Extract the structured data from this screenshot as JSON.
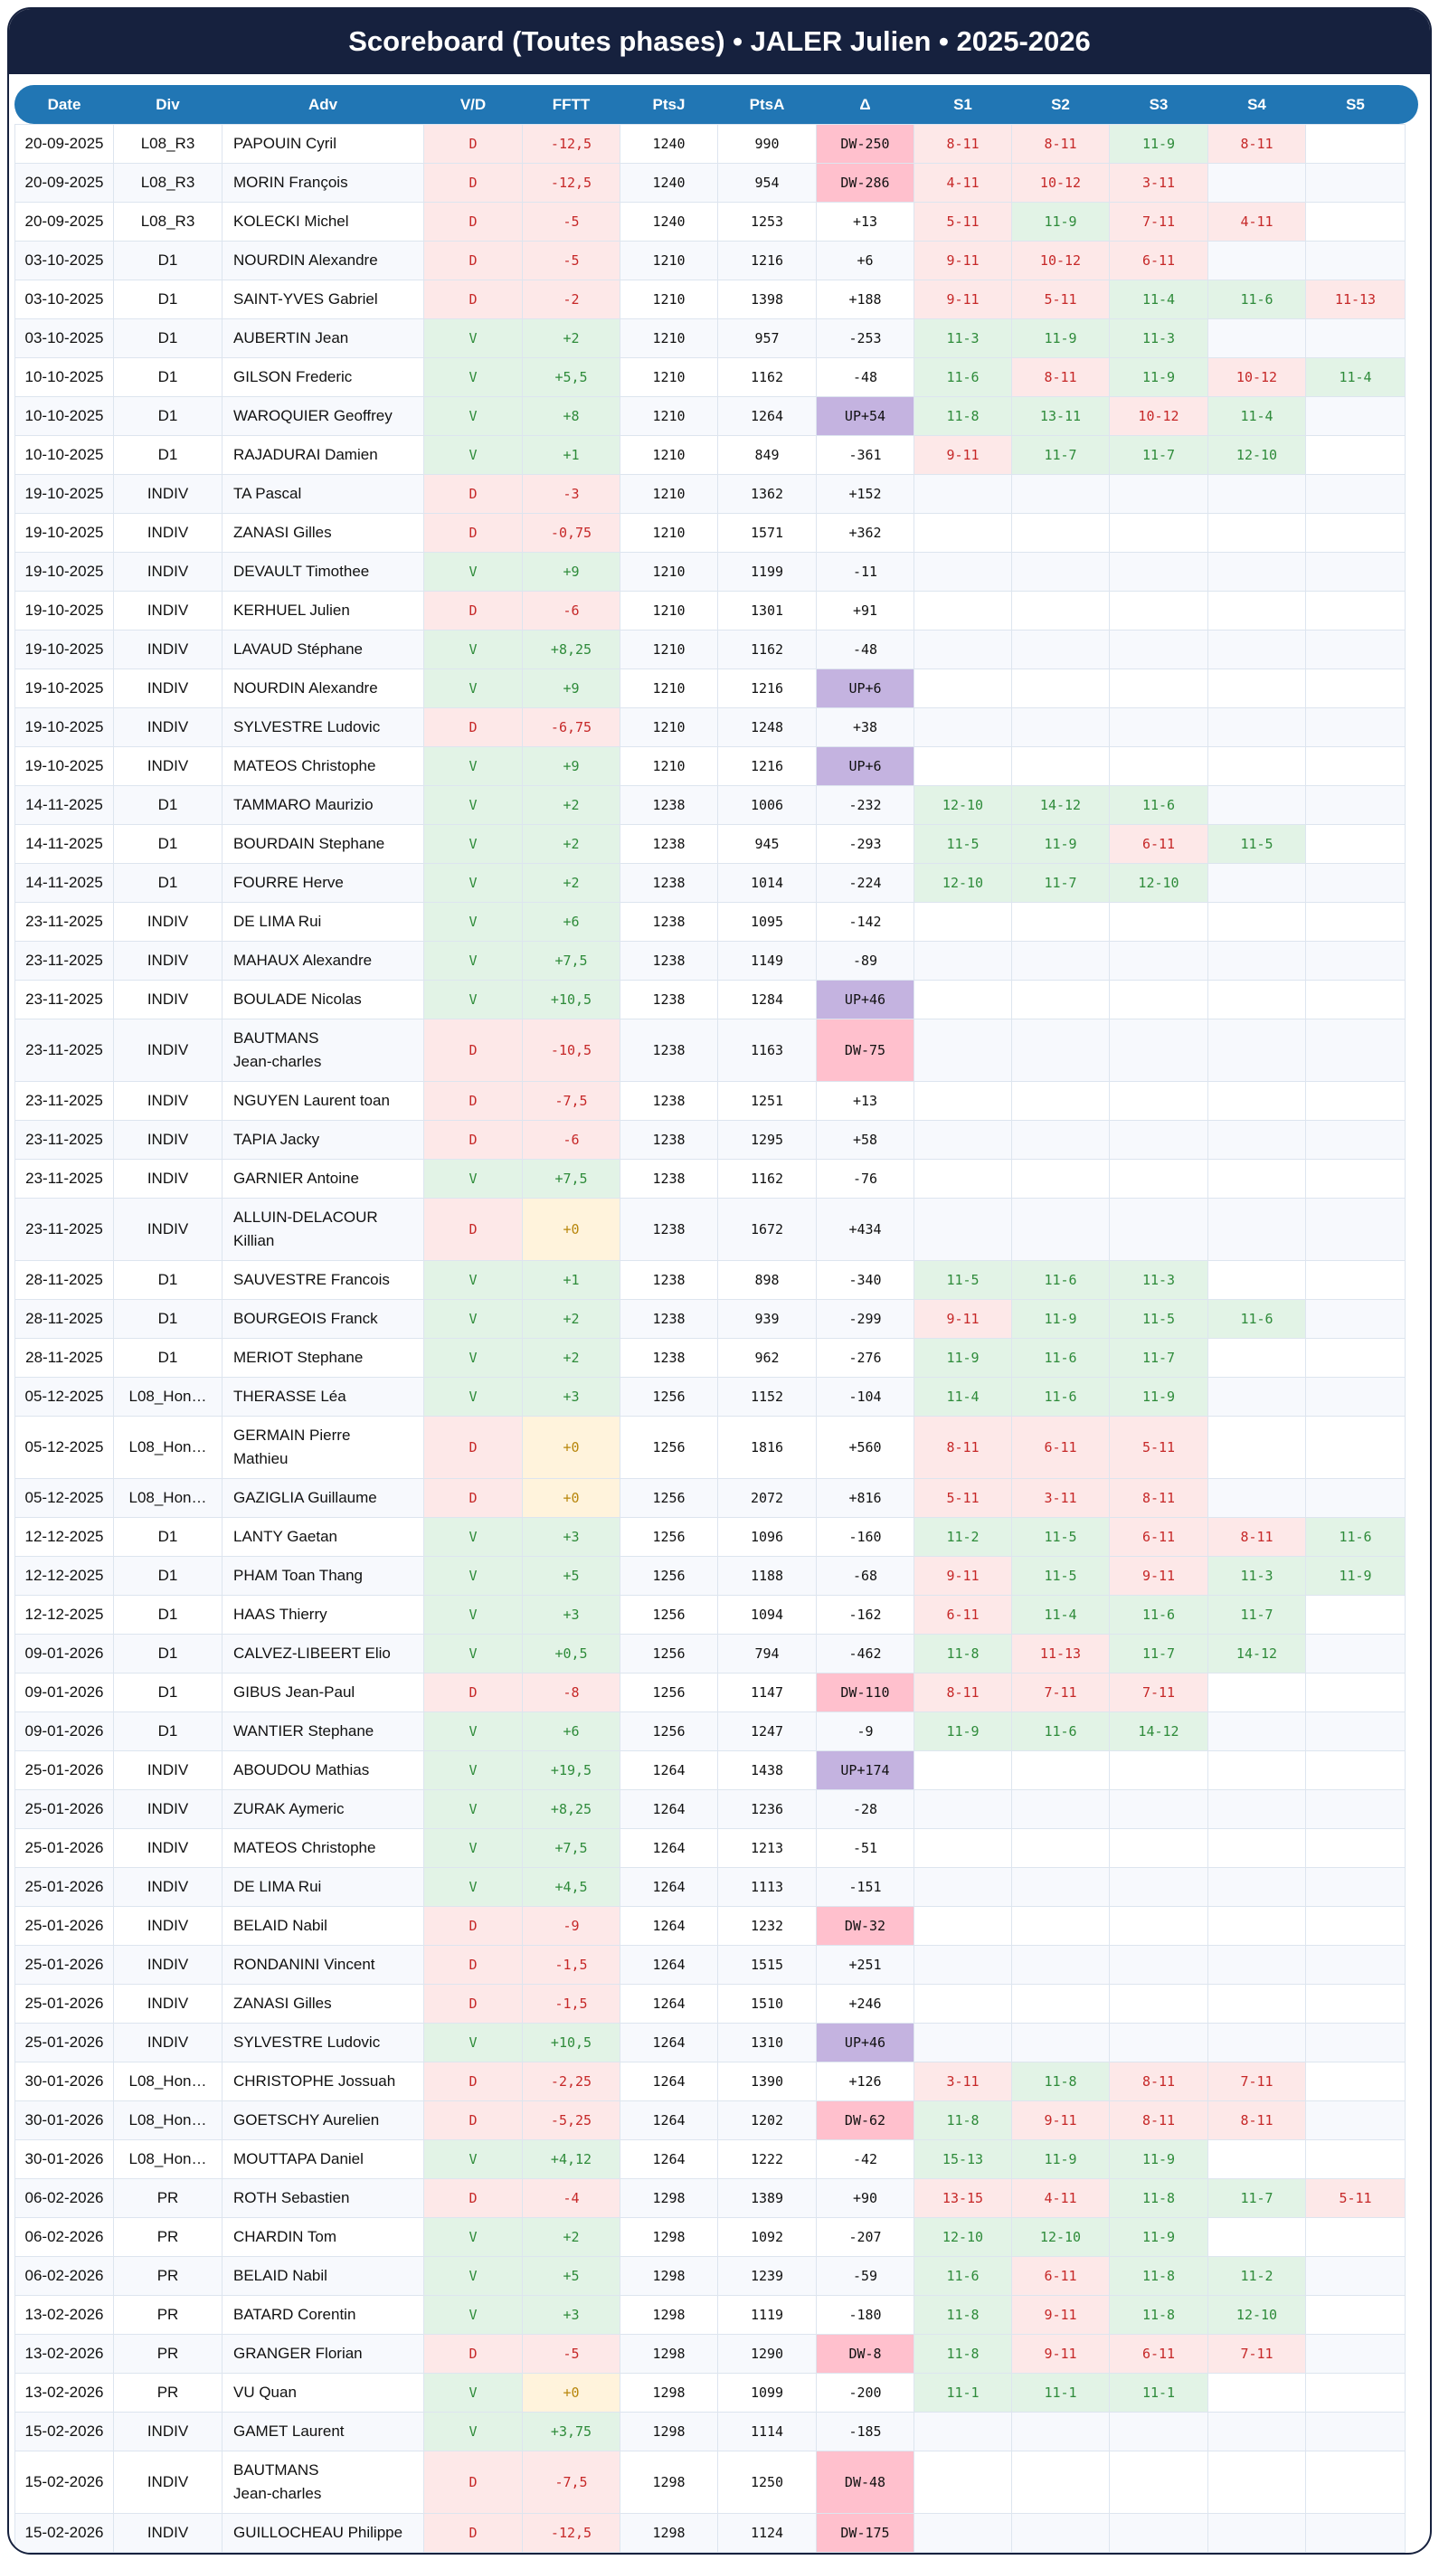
{
  "title": "Scoreboard (Toutes phases) • JALER Julien • 2025-2026",
  "columns": [
    "Date",
    "Div",
    "Adv",
    "V/D",
    "FFTT",
    "PtsJ",
    "PtsA",
    "Δ",
    "S1",
    "S2",
    "S3",
    "S4",
    "S5"
  ],
  "colors": {
    "header": "#16213e",
    "table_header": "#2176b4",
    "win_bg": "#e2f3e6",
    "loss_bg": "#fde8e8",
    "zero_bg": "#fff3dc",
    "dw_bg": "#ffc0cd",
    "up_bg": "#c4b3e0"
  },
  "rows": [
    [
      "20-09-2025",
      "L08_R3",
      "PAPOUIN Cyril",
      "D",
      "-12,5",
      "1240",
      "990",
      "DW-250",
      [
        "8-11",
        "8-11",
        "11-9",
        "8-11",
        ""
      ]
    ],
    [
      "20-09-2025",
      "L08_R3",
      "MORIN François",
      "D",
      "-12,5",
      "1240",
      "954",
      "DW-286",
      [
        "4-11",
        "10-12",
        "3-11",
        "",
        ""
      ]
    ],
    [
      "20-09-2025",
      "L08_R3",
      "KOLECKI Michel",
      "D",
      "-5",
      "1240",
      "1253",
      "+13",
      [
        "5-11",
        "11-9",
        "7-11",
        "4-11",
        ""
      ]
    ],
    [
      "03-10-2025",
      "D1",
      "NOURDIN Alexandre",
      "D",
      "-5",
      "1210",
      "1216",
      "+6",
      [
        "9-11",
        "10-12",
        "6-11",
        "",
        ""
      ]
    ],
    [
      "03-10-2025",
      "D1",
      "SAINT-YVES Gabriel",
      "D",
      "-2",
      "1210",
      "1398",
      "+188",
      [
        "9-11",
        "5-11",
        "11-4",
        "11-6",
        "11-13"
      ]
    ],
    [
      "03-10-2025",
      "D1",
      "AUBERTIN Jean",
      "V",
      "+2",
      "1210",
      "957",
      "-253",
      [
        "11-3",
        "11-9",
        "11-3",
        "",
        ""
      ]
    ],
    [
      "10-10-2025",
      "D1",
      "GILSON Frederic",
      "V",
      "+5,5",
      "1210",
      "1162",
      "-48",
      [
        "11-6",
        "8-11",
        "11-9",
        "10-12",
        "11-4"
      ]
    ],
    [
      "10-10-2025",
      "D1",
      "WAROQUIER Geoffrey",
      "V",
      "+8",
      "1210",
      "1264",
      "UP+54",
      [
        "11-8",
        "13-11",
        "10-12",
        "11-4",
        ""
      ]
    ],
    [
      "10-10-2025",
      "D1",
      "RAJADURAI Damien",
      "V",
      "+1",
      "1210",
      "849",
      "-361",
      [
        "9-11",
        "11-7",
        "11-7",
        "12-10",
        ""
      ]
    ],
    [
      "19-10-2025",
      "INDIV",
      "TA Pascal",
      "D",
      "-3",
      "1210",
      "1362",
      "+152",
      [
        "",
        "",
        "",
        "",
        ""
      ]
    ],
    [
      "19-10-2025",
      "INDIV",
      "ZANASI Gilles",
      "D",
      "-0,75",
      "1210",
      "1571",
      "+362",
      [
        "",
        "",
        "",
        "",
        ""
      ]
    ],
    [
      "19-10-2025",
      "INDIV",
      "DEVAULT Timothee",
      "V",
      "+9",
      "1210",
      "1199",
      "-11",
      [
        "",
        "",
        "",
        "",
        ""
      ]
    ],
    [
      "19-10-2025",
      "INDIV",
      "KERHUEL Julien",
      "D",
      "-6",
      "1210",
      "1301",
      "+91",
      [
        "",
        "",
        "",
        "",
        ""
      ]
    ],
    [
      "19-10-2025",
      "INDIV",
      "LAVAUD Stéphane",
      "V",
      "+8,25",
      "1210",
      "1162",
      "-48",
      [
        "",
        "",
        "",
        "",
        ""
      ]
    ],
    [
      "19-10-2025",
      "INDIV",
      "NOURDIN Alexandre",
      "V",
      "+9",
      "1210",
      "1216",
      "UP+6",
      [
        "",
        "",
        "",
        "",
        ""
      ]
    ],
    [
      "19-10-2025",
      "INDIV",
      "SYLVESTRE Ludovic",
      "D",
      "-6,75",
      "1210",
      "1248",
      "+38",
      [
        "",
        "",
        "",
        "",
        ""
      ]
    ],
    [
      "19-10-2025",
      "INDIV",
      "MATEOS Christophe",
      "V",
      "+9",
      "1210",
      "1216",
      "UP+6",
      [
        "",
        "",
        "",
        "",
        ""
      ]
    ],
    [
      "14-11-2025",
      "D1",
      "TAMMARO Maurizio",
      "V",
      "+2",
      "1238",
      "1006",
      "-232",
      [
        "12-10",
        "14-12",
        "11-6",
        "",
        ""
      ]
    ],
    [
      "14-11-2025",
      "D1",
      "BOURDAIN Stephane",
      "V",
      "+2",
      "1238",
      "945",
      "-293",
      [
        "11-5",
        "11-9",
        "6-11",
        "11-5",
        ""
      ]
    ],
    [
      "14-11-2025",
      "D1",
      "FOURRE Herve",
      "V",
      "+2",
      "1238",
      "1014",
      "-224",
      [
        "12-10",
        "11-7",
        "12-10",
        "",
        ""
      ]
    ],
    [
      "23-11-2025",
      "INDIV",
      "DE LIMA Rui",
      "V",
      "+6",
      "1238",
      "1095",
      "-142",
      [
        "",
        "",
        "",
        "",
        ""
      ]
    ],
    [
      "23-11-2025",
      "INDIV",
      "MAHAUX Alexandre",
      "V",
      "+7,5",
      "1238",
      "1149",
      "-89",
      [
        "",
        "",
        "",
        "",
        ""
      ]
    ],
    [
      "23-11-2025",
      "INDIV",
      "BOULADE Nicolas",
      "V",
      "+10,5",
      "1238",
      "1284",
      "UP+46",
      [
        "",
        "",
        "",
        "",
        ""
      ]
    ],
    [
      "23-11-2025",
      "INDIV",
      "BAUTMANS\nJean-charles",
      "D",
      "-10,5",
      "1238",
      "1163",
      "DW-75",
      [
        "",
        "",
        "",
        "",
        ""
      ]
    ],
    [
      "23-11-2025",
      "INDIV",
      "NGUYEN Laurent toan",
      "D",
      "-7,5",
      "1238",
      "1251",
      "+13",
      [
        "",
        "",
        "",
        "",
        ""
      ]
    ],
    [
      "23-11-2025",
      "INDIV",
      "TAPIA Jacky",
      "D",
      "-6",
      "1238",
      "1295",
      "+58",
      [
        "",
        "",
        "",
        "",
        ""
      ]
    ],
    [
      "23-11-2025",
      "INDIV",
      "GARNIER Antoine",
      "V",
      "+7,5",
      "1238",
      "1162",
      "-76",
      [
        "",
        "",
        "",
        "",
        ""
      ]
    ],
    [
      "23-11-2025",
      "INDIV",
      "ALLUIN-DELACOUR\nKillian",
      "D",
      "+0",
      "1238",
      "1672",
      "+434",
      [
        "",
        "",
        "",
        "",
        ""
      ]
    ],
    [
      "28-11-2025",
      "D1",
      "SAUVESTRE Francois",
      "V",
      "+1",
      "1238",
      "898",
      "-340",
      [
        "11-5",
        "11-6",
        "11-3",
        "",
        ""
      ]
    ],
    [
      "28-11-2025",
      "D1",
      "BOURGEOIS Franck",
      "V",
      "+2",
      "1238",
      "939",
      "-299",
      [
        "9-11",
        "11-9",
        "11-5",
        "11-6",
        ""
      ]
    ],
    [
      "28-11-2025",
      "D1",
      "MERIOT Stephane",
      "V",
      "+2",
      "1238",
      "962",
      "-276",
      [
        "11-9",
        "11-6",
        "11-7",
        "",
        ""
      ]
    ],
    [
      "05-12-2025",
      "L08_Hon…",
      "THERASSE Léa",
      "V",
      "+3",
      "1256",
      "1152",
      "-104",
      [
        "11-4",
        "11-6",
        "11-9",
        "",
        ""
      ]
    ],
    [
      "05-12-2025",
      "L08_Hon…",
      "GERMAIN Pierre\nMathieu",
      "D",
      "+0",
      "1256",
      "1816",
      "+560",
      [
        "8-11",
        "6-11",
        "5-11",
        "",
        ""
      ]
    ],
    [
      "05-12-2025",
      "L08_Hon…",
      "GAZIGLIA Guillaume",
      "D",
      "+0",
      "1256",
      "2072",
      "+816",
      [
        "5-11",
        "3-11",
        "8-11",
        "",
        ""
      ]
    ],
    [
      "12-12-2025",
      "D1",
      "LANTY Gaetan",
      "V",
      "+3",
      "1256",
      "1096",
      "-160",
      [
        "11-2",
        "11-5",
        "6-11",
        "8-11",
        "11-6"
      ]
    ],
    [
      "12-12-2025",
      "D1",
      "PHAM Toan Thang",
      "V",
      "+5",
      "1256",
      "1188",
      "-68",
      [
        "9-11",
        "11-5",
        "9-11",
        "11-3",
        "11-9"
      ]
    ],
    [
      "12-12-2025",
      "D1",
      "HAAS Thierry",
      "V",
      "+3",
      "1256",
      "1094",
      "-162",
      [
        "6-11",
        "11-4",
        "11-6",
        "11-7",
        ""
      ]
    ],
    [
      "09-01-2026",
      "D1",
      "CALVEZ-LIBEERT Elio",
      "V",
      "+0,5",
      "1256",
      "794",
      "-462",
      [
        "11-8",
        "11-13",
        "11-7",
        "14-12",
        ""
      ]
    ],
    [
      "09-01-2026",
      "D1",
      "GIBUS Jean-Paul",
      "D",
      "-8",
      "1256",
      "1147",
      "DW-110",
      [
        "8-11",
        "7-11",
        "7-11",
        "",
        ""
      ]
    ],
    [
      "09-01-2026",
      "D1",
      "WANTIER Stephane",
      "V",
      "+6",
      "1256",
      "1247",
      "-9",
      [
        "11-9",
        "11-6",
        "14-12",
        "",
        ""
      ]
    ],
    [
      "25-01-2026",
      "INDIV",
      "ABOUDOU Mathias",
      "V",
      "+19,5",
      "1264",
      "1438",
      "UP+174",
      [
        "",
        "",
        "",
        "",
        ""
      ]
    ],
    [
      "25-01-2026",
      "INDIV",
      "ZURAK Aymeric",
      "V",
      "+8,25",
      "1264",
      "1236",
      "-28",
      [
        "",
        "",
        "",
        "",
        ""
      ]
    ],
    [
      "25-01-2026",
      "INDIV",
      "MATEOS Christophe",
      "V",
      "+7,5",
      "1264",
      "1213",
      "-51",
      [
        "",
        "",
        "",
        "",
        ""
      ]
    ],
    [
      "25-01-2026",
      "INDIV",
      "DE LIMA Rui",
      "V",
      "+4,5",
      "1264",
      "1113",
      "-151",
      [
        "",
        "",
        "",
        "",
        ""
      ]
    ],
    [
      "25-01-2026",
      "INDIV",
      "BELAID Nabil",
      "D",
      "-9",
      "1264",
      "1232",
      "DW-32",
      [
        "",
        "",
        "",
        "",
        ""
      ]
    ],
    [
      "25-01-2026",
      "INDIV",
      "RONDANINI Vincent",
      "D",
      "-1,5",
      "1264",
      "1515",
      "+251",
      [
        "",
        "",
        "",
        "",
        ""
      ]
    ],
    [
      "25-01-2026",
      "INDIV",
      "ZANASI Gilles",
      "D",
      "-1,5",
      "1264",
      "1510",
      "+246",
      [
        "",
        "",
        "",
        "",
        ""
      ]
    ],
    [
      "25-01-2026",
      "INDIV",
      "SYLVESTRE Ludovic",
      "V",
      "+10,5",
      "1264",
      "1310",
      "UP+46",
      [
        "",
        "",
        "",
        "",
        ""
      ]
    ],
    [
      "30-01-2026",
      "L08_Hon…",
      "CHRISTOPHE Jossuah",
      "D",
      "-2,25",
      "1264",
      "1390",
      "+126",
      [
        "3-11",
        "11-8",
        "8-11",
        "7-11",
        ""
      ]
    ],
    [
      "30-01-2026",
      "L08_Hon…",
      "GOETSCHY Aurelien",
      "D",
      "-5,25",
      "1264",
      "1202",
      "DW-62",
      [
        "11-8",
        "9-11",
        "8-11",
        "8-11",
        ""
      ]
    ],
    [
      "30-01-2026",
      "L08_Hon…",
      "MOUTTAPA Daniel",
      "V",
      "+4,12",
      "1264",
      "1222",
      "-42",
      [
        "15-13",
        "11-9",
        "11-9",
        "",
        ""
      ]
    ],
    [
      "06-02-2026",
      "PR",
      "ROTH Sebastien",
      "D",
      "-4",
      "1298",
      "1389",
      "+90",
      [
        "13-15",
        "4-11",
        "11-8",
        "11-7",
        "5-11"
      ]
    ],
    [
      "06-02-2026",
      "PR",
      "CHARDIN Tom",
      "V",
      "+2",
      "1298",
      "1092",
      "-207",
      [
        "12-10",
        "12-10",
        "11-9",
        "",
        ""
      ]
    ],
    [
      "06-02-2026",
      "PR",
      "BELAID Nabil",
      "V",
      "+5",
      "1298",
      "1239",
      "-59",
      [
        "11-6",
        "6-11",
        "11-8",
        "11-2",
        ""
      ]
    ],
    [
      "13-02-2026",
      "PR",
      "BATARD Corentin",
      "V",
      "+3",
      "1298",
      "1119",
      "-180",
      [
        "11-8",
        "9-11",
        "11-8",
        "12-10",
        ""
      ]
    ],
    [
      "13-02-2026",
      "PR",
      "GRANGER Florian",
      "D",
      "-5",
      "1298",
      "1290",
      "DW-8",
      [
        "11-8",
        "9-11",
        "6-11",
        "7-11",
        ""
      ]
    ],
    [
      "13-02-2026",
      "PR",
      "VU Quan",
      "V",
      "+0",
      "1298",
      "1099",
      "-200",
      [
        "11-1",
        "11-1",
        "11-1",
        "",
        ""
      ]
    ],
    [
      "15-02-2026",
      "INDIV",
      "GAMET Laurent",
      "V",
      "+3,75",
      "1298",
      "1114",
      "-185",
      [
        "",
        "",
        "",
        "",
        ""
      ]
    ],
    [
      "15-02-2026",
      "INDIV",
      "BAUTMANS\nJean-charles",
      "D",
      "-7,5",
      "1298",
      "1250",
      "DW-48",
      [
        "",
        "",
        "",
        "",
        ""
      ]
    ],
    [
      "15-02-2026",
      "INDIV",
      "GUILLOCHEAU Philippe",
      "D",
      "-12,5",
      "1298",
      "1124",
      "DW-175",
      [
        "",
        "",
        "",
        "",
        ""
      ]
    ]
  ]
}
